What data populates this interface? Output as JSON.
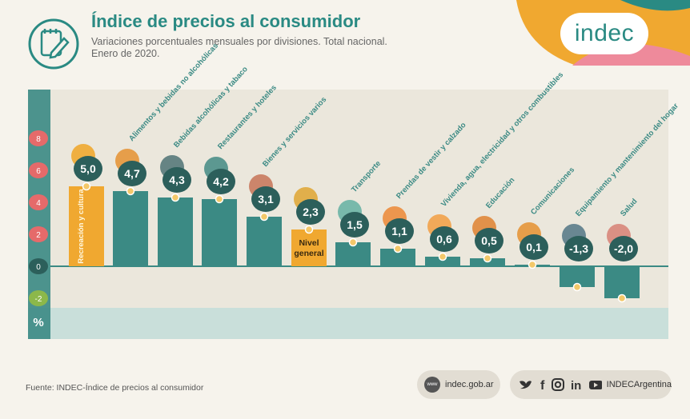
{
  "header": {
    "title": "Índice de precios al consumidor",
    "subtitle_line1": "Variaciones porcentuales mensuales por divisiones. Total nacional.",
    "subtitle_line2": "Enero de 2020."
  },
  "logo": {
    "text": "indec"
  },
  "colors": {
    "teal": "#3b8a84",
    "orange": "#f0a830",
    "axis_bubble": "#2c5f5b",
    "negative_bubble": "#8cb84a",
    "plot_bg": "#ebe7dc",
    "footer_band": "#c9dfda"
  },
  "chart_data": {
    "type": "bar",
    "ylabel": "%",
    "ylim": [
      -2.5,
      10
    ],
    "ticks": [
      8,
      6,
      4,
      2,
      0,
      -2
    ],
    "bars": [
      {
        "label": "Recreación y cultura",
        "value": 5.0,
        "value_label": "5,0",
        "label_inside": true,
        "icon": "sun-ball-icon"
      },
      {
        "label": "Alimentos y bebidas no alcohólicas",
        "value": 4.7,
        "value_label": "4,7",
        "icon": "roast-chicken-icon"
      },
      {
        "label": "Bebidas alcohólicas y tabaco",
        "value": 4.3,
        "value_label": "4,3",
        "icon": "wine-bottle-icon"
      },
      {
        "label": "Restaurantes y hoteles",
        "value": 4.2,
        "value_label": "4,2",
        "icon": "food-tray-icon"
      },
      {
        "label": "Bienes y servicios varios",
        "value": 3.1,
        "value_label": "3,1",
        "icon": "scissors-comb-icon"
      },
      {
        "label": "Nivel general",
        "value": 2.3,
        "value_label": "2,3",
        "label_inside": true,
        "highlight": true,
        "icon": "shopping-basket-icon"
      },
      {
        "label": "Transporte",
        "value": 1.5,
        "value_label": "1,5",
        "icon": "bus-card-icon"
      },
      {
        "label": "Prendas de vestir y calzado",
        "value": 1.1,
        "value_label": "1,1",
        "icon": "tshirt-shoe-icon"
      },
      {
        "label": "Vivienda, agua, electricidad y otros combustibles",
        "value": 0.6,
        "value_label": "0,6",
        "icon": "lightbulb-icon"
      },
      {
        "label": "Educación",
        "value": 0.5,
        "value_label": "0,5",
        "icon": "book-icon"
      },
      {
        "label": "Comunicaciones",
        "value": 0.1,
        "value_label": "0,1",
        "icon": "phone-icon"
      },
      {
        "label": "Equipamiento y mantenimiento del hogar",
        "value": -1.3,
        "value_label": "-1,3",
        "icon": "washing-machine-icon"
      },
      {
        "label": "Salud",
        "value": -2.0,
        "value_label": "-2,0",
        "icon": "first-aid-icon"
      }
    ],
    "tick_labels": [
      "8",
      "6",
      "4",
      "2",
      "0",
      "-2"
    ],
    "grid": false,
    "legend": "none"
  },
  "footer": {
    "source": "Fuente: INDEC-Índice de precios al consumidor",
    "web_icon_text": "www",
    "website": "indec.gob.ar",
    "social_handle": "INDECArgentina",
    "social_icons": [
      "twitter-icon",
      "facebook-icon",
      "instagram-icon",
      "linkedin-icon",
      "youtube-icon"
    ]
  }
}
